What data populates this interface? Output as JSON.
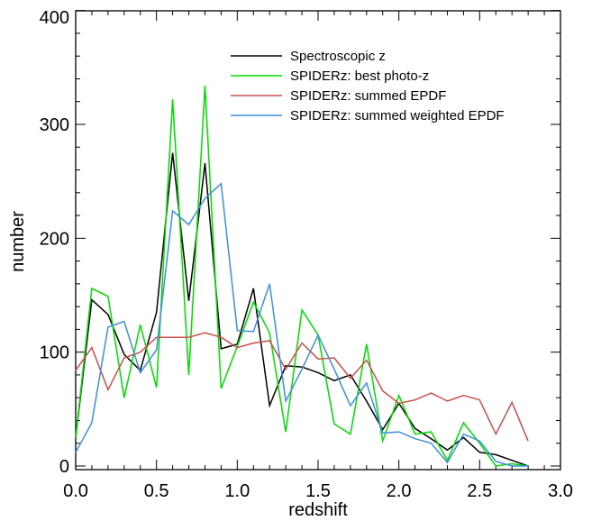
{
  "chart_data": {
    "type": "line",
    "xlabel": "redshift",
    "ylabel": "number",
    "xlim": [
      0.0,
      3.0
    ],
    "ylim": [
      0,
      400
    ],
    "x_ticks": [
      "0.0",
      "0.5",
      "1.0",
      "1.5",
      "2.0",
      "2.5",
      "3.0"
    ],
    "y_ticks": [
      "0",
      "100",
      "200",
      "300",
      "400"
    ],
    "legend_position": "top-right",
    "x": [
      0.0,
      0.1,
      0.2,
      0.3,
      0.4,
      0.5,
      0.6,
      0.7,
      0.8,
      0.9,
      1.0,
      1.1,
      1.2,
      1.3,
      1.4,
      1.5,
      1.6,
      1.7,
      1.8,
      1.9,
      2.0,
      2.1,
      2.2,
      2.3,
      2.4,
      2.5,
      2.6,
      2.7,
      2.8
    ],
    "series": [
      {
        "name": "Spectroscopic z",
        "color": "#000000",
        "values": [
          25,
          146,
          133,
          98,
          84,
          135,
          275,
          145,
          266,
          103,
          107,
          156,
          53,
          88,
          87,
          82,
          75,
          80,
          57,
          32,
          55,
          33,
          24,
          14,
          25,
          12,
          10,
          5,
          0
        ]
      },
      {
        "name": "SPIDERz: best photo-z",
        "color": "#00dd00",
        "values": [
          25,
          156,
          149,
          60,
          124,
          69,
          322,
          80,
          334,
          68,
          105,
          144,
          117,
          30,
          137,
          115,
          37,
          28,
          107,
          22,
          62,
          28,
          30,
          5,
          38,
          20,
          0,
          2,
          0
        ]
      },
      {
        "name": "SPIDERz: summed EPDF",
        "color": "#c8504d",
        "values": [
          84,
          104,
          67,
          95,
          100,
          113,
          113,
          113,
          117,
          113,
          104,
          108,
          110,
          85,
          108,
          94,
          95,
          77,
          93,
          66,
          55,
          58,
          64,
          57,
          62,
          58,
          28,
          56,
          22
        ]
      },
      {
        "name": "SPIDERz: summed weighted EPDF",
        "color": "#3d8fe0",
        "values": [
          12,
          38,
          122,
          127,
          82,
          102,
          224,
          212,
          235,
          248,
          119,
          118,
          160,
          57,
          85,
          115,
          85,
          53,
          73,
          29,
          30,
          24,
          20,
          3,
          28,
          22,
          4,
          0,
          0
        ]
      }
    ]
  }
}
